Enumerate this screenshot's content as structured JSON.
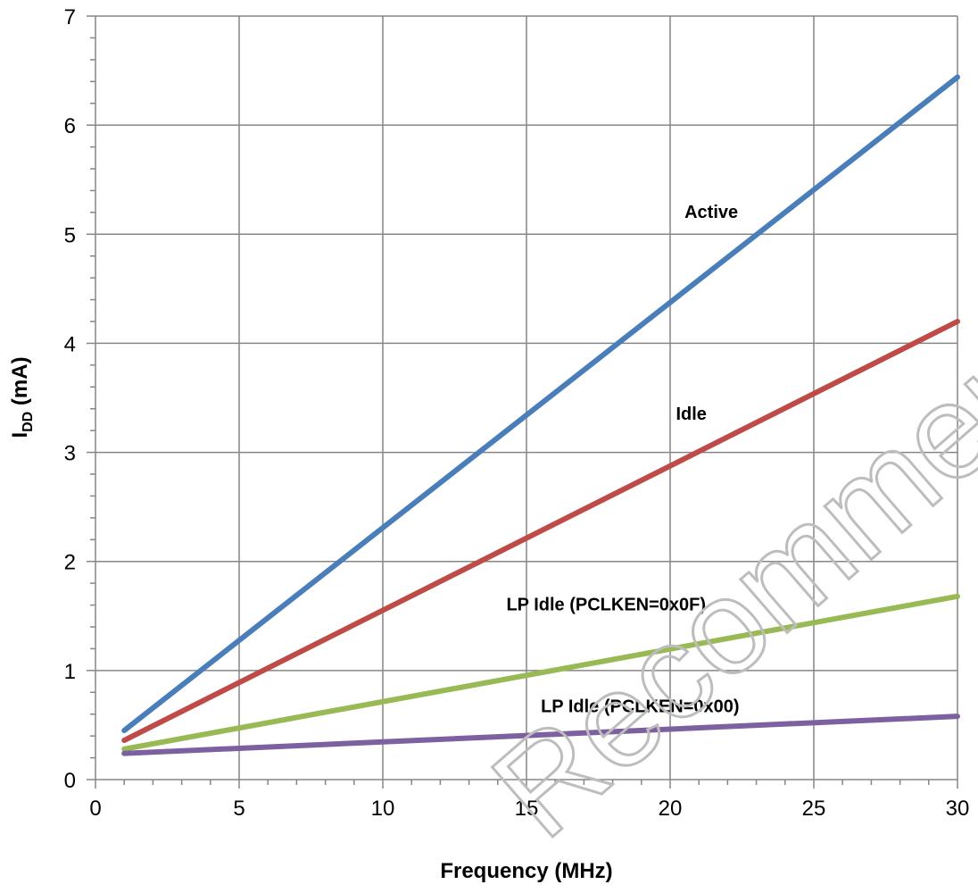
{
  "chart_data": {
    "type": "line",
    "title": "",
    "xlabel": "Frequency (MHz)",
    "ylabel": {
      "main": "I",
      "sub": "DD",
      "suffix": " (mA)"
    },
    "xlim": [
      0,
      30
    ],
    "ylim": [
      0,
      7
    ],
    "xticks": [
      0,
      5,
      10,
      15,
      20,
      25,
      30
    ],
    "yticks": [
      0,
      1,
      2,
      3,
      4,
      5,
      6,
      7
    ],
    "x_minor_step": 1,
    "y_minor_step": 0.2,
    "grid": true,
    "legend": "none",
    "series": [
      {
        "name": "Active",
        "color": "#4a7ebb",
        "x": [
          1,
          30
        ],
        "values": [
          0.45,
          6.44
        ]
      },
      {
        "name": "Idle",
        "color": "#be4b48",
        "x": [
          1,
          30
        ],
        "values": [
          0.36,
          4.2
        ]
      },
      {
        "name": "LP Idle (PCLKEN=0x0F)",
        "color": "#98b954",
        "x": [
          1,
          30
        ],
        "values": [
          0.28,
          1.68
        ]
      },
      {
        "name": "LP Idle (PCLKEN=0x00)",
        "color": "#7d60a0",
        "x": [
          1,
          30
        ],
        "values": [
          0.24,
          0.58
        ]
      }
    ],
    "annotations": [
      {
        "text": "Active",
        "x": 20.5,
        "y": 5.15
      },
      {
        "text": "Idle",
        "x": 20.2,
        "y": 3.3
      },
      {
        "text": "LP Idle (PCLKEN=0x0F)",
        "x": 14.3,
        "y": 1.55
      },
      {
        "text": "LP Idle (PCLKEN=0x00)",
        "x": 15.5,
        "y": 0.62
      }
    ]
  },
  "watermark": "Recommended for New Des"
}
